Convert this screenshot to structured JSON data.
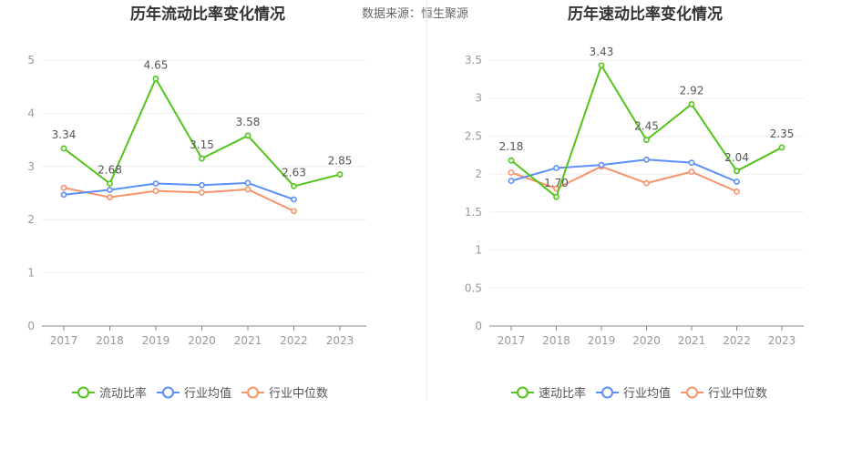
{
  "source": "数据来源：恒生聚源",
  "chart_data": [
    {
      "type": "line",
      "title": "历年流动比率变化情况",
      "categories": [
        "2017",
        "2018",
        "2019",
        "2020",
        "2021",
        "2022",
        "2023"
      ],
      "ylim": [
        0,
        5
      ],
      "yticks": [
        0,
        1,
        2,
        3,
        4,
        5
      ],
      "ytick_labels": [
        "0",
        "1",
        "2",
        "3",
        "4",
        "5"
      ],
      "series": [
        {
          "name": "流动比率",
          "color": "#52c41a",
          "values": [
            3.34,
            2.68,
            4.65,
            3.15,
            3.58,
            2.63,
            2.85
          ],
          "labels": [
            "3.34",
            "2.68",
            "4.65",
            "3.15",
            "3.58",
            "2.63",
            "2.85"
          ]
        },
        {
          "name": "行业均值",
          "color": "#5b8ff9",
          "values": [
            2.47,
            2.56,
            2.68,
            2.65,
            2.69,
            2.38,
            null
          ]
        },
        {
          "name": "行业中位数",
          "color": "#f6946b",
          "values": [
            2.6,
            2.42,
            2.54,
            2.51,
            2.57,
            2.16,
            null
          ]
        }
      ]
    },
    {
      "type": "line",
      "title": "历年速动比率变化情况",
      "categories": [
        "2017",
        "2018",
        "2019",
        "2020",
        "2021",
        "2022",
        "2023"
      ],
      "ylim": [
        0,
        3.5
      ],
      "yticks": [
        0,
        0.5,
        1,
        1.5,
        2,
        2.5,
        3,
        3.5
      ],
      "ytick_labels": [
        "0",
        "0.5",
        "1",
        "1.5",
        "2",
        "2.5",
        "3",
        "3.5"
      ],
      "series": [
        {
          "name": "速动比率",
          "color": "#52c41a",
          "values": [
            2.18,
            1.7,
            3.43,
            2.45,
            2.92,
            2.04,
            2.35
          ],
          "labels": [
            "2.18",
            "1.70",
            "3.43",
            "2.45",
            "2.92",
            "2.04",
            "2.35"
          ]
        },
        {
          "name": "行业均值",
          "color": "#5b8ff9",
          "values": [
            1.91,
            2.08,
            2.12,
            2.19,
            2.15,
            1.9,
            null
          ]
        },
        {
          "name": "行业中位数",
          "color": "#f6946b",
          "values": [
            2.02,
            1.81,
            2.1,
            1.88,
            2.03,
            1.77,
            null
          ]
        }
      ]
    }
  ]
}
